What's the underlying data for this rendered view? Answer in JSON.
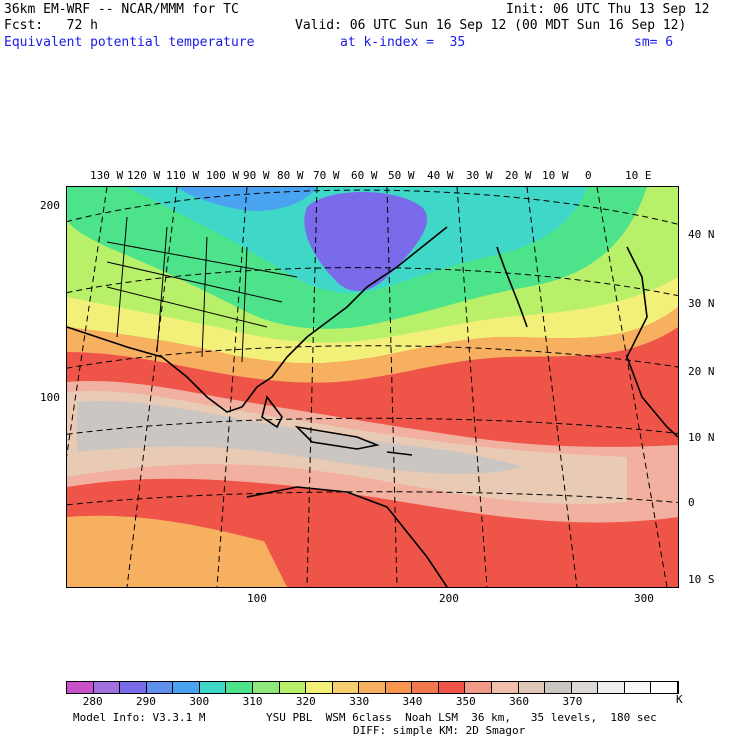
{
  "header": {
    "model": "36km EM-WRF -- NCAR/MMM for TC",
    "init": "Init: 06 UTC Thu 13 Sep 12",
    "fcst": "Fcst:   72 h",
    "valid": "Valid: 06 UTC Sun 16 Sep 12 (00 MDT Sun 16 Sep 12)",
    "field": "Equivalent potential temperature",
    "level": "at k-index =  35",
    "smoothing": "sm= 6"
  },
  "map": {
    "top_lon_labels": [
      "130 W",
      "120 W",
      "110 W",
      "100 W",
      "90 W",
      "80 W",
      "70 W",
      "60 W",
      "50 W",
      "40 W",
      "30 W",
      "20 W",
      "10 W",
      "0",
      "10 E"
    ],
    "right_lat_labels": [
      "40 N",
      "30 N",
      "20 N",
      "10 N",
      "0",
      "10 S"
    ],
    "left_grid_labels": [
      "200",
      "100"
    ],
    "bottom_grid_labels": [
      "100",
      "200",
      "300"
    ],
    "colors": {
      "cold": "#7a6bea",
      "blue": "#4aa3f0",
      "teal": "#3fd8c8",
      "green": "#4de38a",
      "yellow_green": "#b8f06a",
      "yellow": "#f3f07a",
      "orange": "#f7b060",
      "red_orange": "#f2784e",
      "red": "#ee5548",
      "pink": "#f2b0a0",
      "tan": "#e9cab4",
      "grey": "#cbc6c2"
    }
  },
  "colorbar": {
    "colors": [
      "#c850c8",
      "#a070e0",
      "#7a6bea",
      "#6090ee",
      "#4aa3f0",
      "#3fd8c8",
      "#4de38a",
      "#8ee87a",
      "#b8f06a",
      "#f3f07a",
      "#f6d070",
      "#f7b060",
      "#f7964e",
      "#f2784e",
      "#ee5548",
      "#f29a88",
      "#f0c0aa",
      "#e0c8b8",
      "#cbc6c2",
      "#dcd8d6",
      "#eeeeee",
      "#f8f8f8",
      "#ffffff"
    ],
    "labels": [
      "280",
      "290",
      "300",
      "310",
      "320",
      "330",
      "340",
      "350",
      "360",
      "370"
    ],
    "unit": "K"
  },
  "footer": {
    "model_info": "Model Info: V3.3.1 M",
    "physics": "YSU PBL  WSM 6class  Noah LSM  36 km,   35 levels,  180 sec",
    "diffusion": "DIFF: simple KM: 2D Smagor"
  }
}
